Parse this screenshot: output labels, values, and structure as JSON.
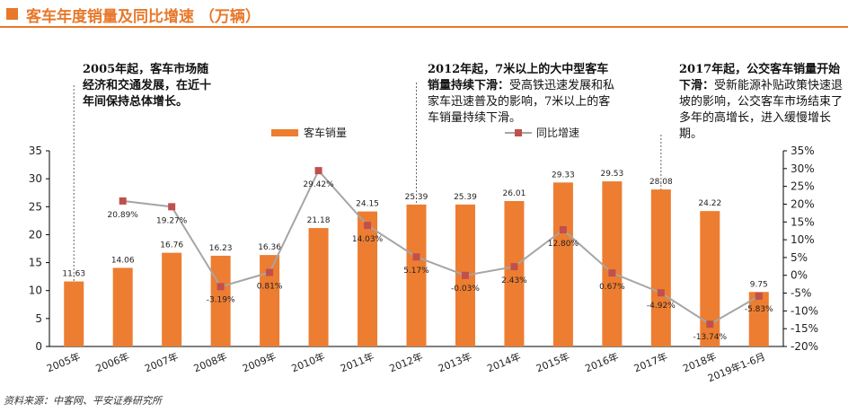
{
  "header": {
    "title": "客车年度销量及同比增速 （万辆）"
  },
  "annotations": [
    {
      "bold": "2005年起，客车市场随经济和交通发展，在近十年间保持总体增长。",
      "text": ""
    },
    {
      "bold": "2012年起，7米以上的大中型客车销量持续下滑：",
      "text": "受高铁迅速发展和私家车迅速普及的影响，7米以上的客车销量持续下滑。"
    },
    {
      "bold": "2017年起，公交客车销量开始下滑：",
      "text": "受新能源补贴政策快速退坡的影响，公交客车市场结束了多年的高增长，进入缓慢增长期。"
    }
  ],
  "source": "资料来源：中客网、平安证券研究所",
  "colors": {
    "bar": "#ed7d31",
    "line": "#a5a5a5",
    "marker": "#c0504d",
    "accent": "#e8782a"
  },
  "chart_data": {
    "type": "bar",
    "categories": [
      "2005年",
      "2006年",
      "2007年",
      "2008年",
      "2009年",
      "2010年",
      "2011年",
      "2012年",
      "2013年",
      "2014年",
      "2015年",
      "2016年",
      "2017年",
      "2018年",
      "2019年1-6月"
    ],
    "series": [
      {
        "name": "客车销量",
        "type": "bar",
        "axis": "left",
        "values": [
          11.63,
          14.06,
          16.76,
          16.23,
          16.36,
          21.18,
          24.15,
          25.39,
          25.39,
          26.01,
          29.33,
          29.53,
          28.08,
          24.22,
          9.75
        ],
        "labels": [
          "11.63",
          "14.06",
          "16.76",
          "16.23",
          "16.36",
          "21.18",
          "24.15",
          "25.39",
          "25.39",
          "26.01",
          "29.33",
          "29.53",
          "28.08",
          "24.22",
          "9.75"
        ]
      },
      {
        "name": "同比增速",
        "type": "line",
        "axis": "right",
        "values": [
          null,
          20.89,
          19.27,
          -3.19,
          0.81,
          29.42,
          14.03,
          5.17,
          -0.03,
          2.43,
          12.8,
          0.67,
          -4.92,
          -13.74,
          -5.83
        ],
        "labels": [
          "",
          "20.89%",
          "19.27%",
          "-3.19%",
          "0.81%",
          "29.42%",
          "14.03%",
          "5.17%",
          "-0.03%",
          "2.43%",
          "12.80%",
          "0.67%",
          "-4.92%",
          "-13.74%",
          "-5.83%"
        ]
      }
    ],
    "ylim_left": [
      0,
      35
    ],
    "yticks_left": [
      "0",
      "5",
      "10",
      "15",
      "20",
      "25",
      "30",
      "35"
    ],
    "ylim_right": [
      -20,
      35
    ],
    "yticks_right": [
      "-20%",
      "-15%",
      "-10%",
      "-5%",
      "0%",
      "5%",
      "10%",
      "15%",
      "20%",
      "25%",
      "30%",
      "35%"
    ],
    "legend_position": "top-center",
    "grid": false
  }
}
